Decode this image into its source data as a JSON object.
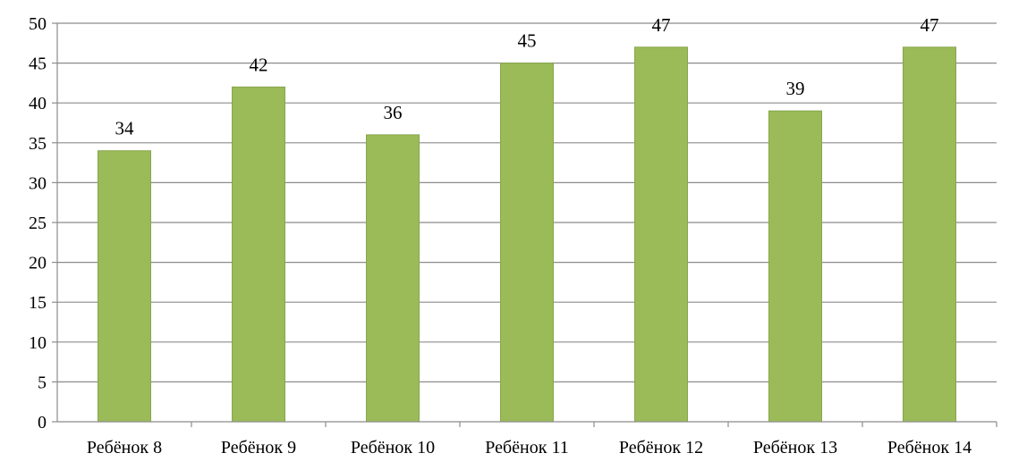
{
  "chart_data": {
    "type": "bar",
    "categories": [
      "Ребёнок 8",
      "Ребёнок 9",
      "Ребёнок 10",
      "Ребёнок 11",
      "Ребёнок 12",
      "Ребёнок 13",
      "Ребёнок 14"
    ],
    "values": [
      34,
      42,
      36,
      45,
      47,
      39,
      47
    ],
    "ylim": [
      0,
      50
    ],
    "y_ticks": [
      0,
      5,
      10,
      15,
      20,
      25,
      30,
      35,
      40,
      45,
      50
    ],
    "grid": true,
    "legend": "none",
    "data_labels": true,
    "colors": {
      "bar": "#9bbb59",
      "bar_edge": "#87a64b",
      "grid": "#8c8c8c",
      "axis": "#8c8c8c"
    }
  }
}
